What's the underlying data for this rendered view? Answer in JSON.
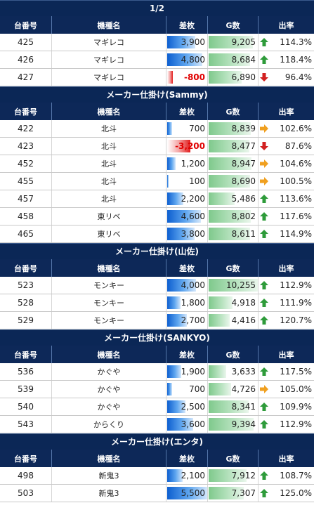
{
  "headers": {
    "no": "台番号",
    "name": "機種名",
    "diff": "差枚",
    "g": "G数",
    "rate": "出率"
  },
  "colors": {
    "header_bg": "#0d2858",
    "pos_bar": "#2f7fe0",
    "neg_bar": "#e21b1b",
    "g_bar": "#7fc98c",
    "up": "#2e9b3a",
    "right": "#f0a020",
    "down": "#d22020"
  },
  "sections": [
    {
      "title": "1/2",
      "rows": [
        {
          "no": "425",
          "name": "マギレコ",
          "diff": 3900,
          "diff_text": "3,900",
          "g": 9205,
          "g_text": "9,205",
          "trend": "up",
          "rate": "114.3%"
        },
        {
          "no": "426",
          "name": "マギレコ",
          "diff": 4800,
          "diff_text": "4,800",
          "g": 8684,
          "g_text": "8,684",
          "trend": "up",
          "rate": "118.4%"
        },
        {
          "no": "427",
          "name": "マギレコ",
          "diff": -800,
          "diff_text": "-800",
          "g": 6890,
          "g_text": "6,890",
          "trend": "down",
          "rate": "96.4%"
        }
      ]
    },
    {
      "title": "メーカー仕掛け(Sammy)",
      "rows": [
        {
          "no": "422",
          "name": "北斗",
          "diff": 700,
          "diff_text": "700",
          "g": 8839,
          "g_text": "8,839",
          "trend": "right",
          "rate": "102.6%"
        },
        {
          "no": "423",
          "name": "北斗",
          "diff": -3200,
          "diff_text": "-3,200",
          "g": 8477,
          "g_text": "8,477",
          "trend": "down",
          "rate": "87.6%"
        },
        {
          "no": "452",
          "name": "北斗",
          "diff": 1200,
          "diff_text": "1,200",
          "g": 8947,
          "g_text": "8,947",
          "trend": "right",
          "rate": "104.6%"
        },
        {
          "no": "455",
          "name": "北斗",
          "diff": 100,
          "diff_text": "100",
          "g": 8690,
          "g_text": "8,690",
          "trend": "right",
          "rate": "100.5%"
        },
        {
          "no": "457",
          "name": "北斗",
          "diff": 2200,
          "diff_text": "2,200",
          "g": 5486,
          "g_text": "5,486",
          "trend": "up",
          "rate": "113.6%"
        },
        {
          "no": "458",
          "name": "東リベ",
          "diff": 4600,
          "diff_text": "4,600",
          "g": 8802,
          "g_text": "8,802",
          "trend": "up",
          "rate": "117.6%"
        },
        {
          "no": "465",
          "name": "東リベ",
          "diff": 3800,
          "diff_text": "3,800",
          "g": 8611,
          "g_text": "8,611",
          "trend": "up",
          "rate": "114.9%"
        }
      ]
    },
    {
      "title": "メーカー仕掛け(山佐)",
      "rows": [
        {
          "no": "523",
          "name": "モンキー",
          "diff": 4000,
          "diff_text": "4,000",
          "g": 10255,
          "g_text": "10,255",
          "trend": "up",
          "rate": "112.9%"
        },
        {
          "no": "528",
          "name": "モンキー",
          "diff": 1800,
          "diff_text": "1,800",
          "g": 4918,
          "g_text": "4,918",
          "trend": "up",
          "rate": "111.9%"
        },
        {
          "no": "529",
          "name": "モンキー",
          "diff": 2700,
          "diff_text": "2,700",
          "g": 4416,
          "g_text": "4,416",
          "trend": "up",
          "rate": "120.7%"
        }
      ]
    },
    {
      "title": "メーカー仕掛け(SANKYO)",
      "rows": [
        {
          "no": "536",
          "name": "かぐや",
          "diff": 1900,
          "diff_text": "1,900",
          "g": 3633,
          "g_text": "3,633",
          "trend": "up",
          "rate": "117.5%"
        },
        {
          "no": "539",
          "name": "かぐや",
          "diff": 700,
          "diff_text": "700",
          "g": 4726,
          "g_text": "4,726",
          "trend": "right",
          "rate": "105.0%"
        },
        {
          "no": "540",
          "name": "かぐや",
          "diff": 2500,
          "diff_text": "2,500",
          "g": 8341,
          "g_text": "8,341",
          "trend": "up",
          "rate": "109.9%"
        },
        {
          "no": "543",
          "name": "からくり",
          "diff": 3600,
          "diff_text": "3,600",
          "g": 9394,
          "g_text": "9,394",
          "trend": "up",
          "rate": "112.9%"
        }
      ]
    },
    {
      "title": "メーカー仕掛け(エンタ)",
      "rows": [
        {
          "no": "498",
          "name": "新鬼3",
          "diff": 2100,
          "diff_text": "2,100",
          "g": 7912,
          "g_text": "7,912",
          "trend": "up",
          "rate": "108.7%"
        },
        {
          "no": "503",
          "name": "新鬼3",
          "diff": 5500,
          "diff_text": "5,500",
          "g": 7307,
          "g_text": "7,307",
          "trend": "up",
          "rate": "125.0%"
        }
      ]
    }
  ]
}
